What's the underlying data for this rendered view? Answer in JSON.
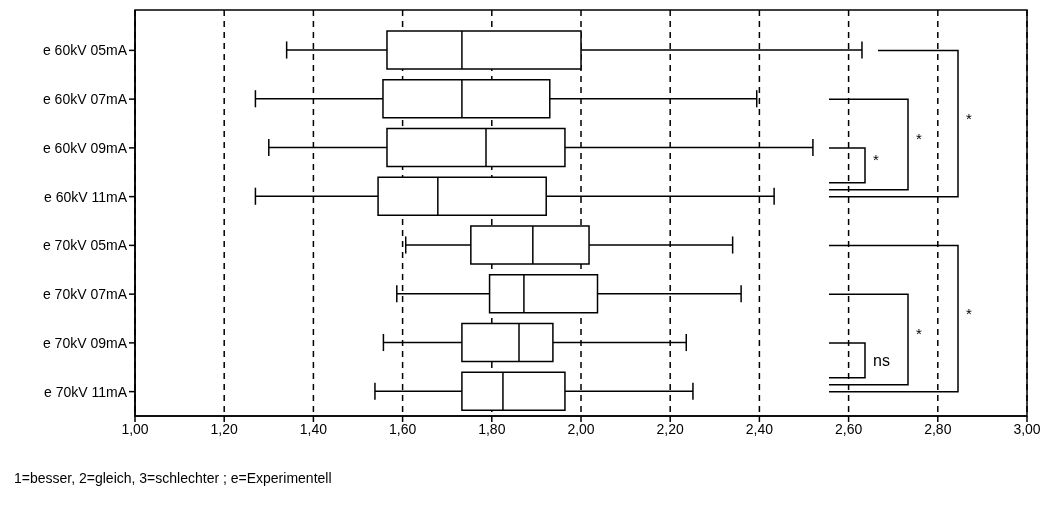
{
  "chart_data": {
    "type": "box",
    "orientation": "horizontal",
    "categories": [
      "e 60kV 05mA",
      "e 60kV 07mA",
      "e 60kV 09mA",
      "e 60kV 11mA",
      "e 70kV 05mA",
      "e 70kV 07mA",
      "e 70kV 09mA",
      "e 70kV 11mA"
    ],
    "boxes": [
      {
        "low": 1.34,
        "q1": 1.565,
        "median": 1.733,
        "q3": 2.0,
        "high": 2.63
      },
      {
        "low": 1.27,
        "q1": 1.556,
        "median": 1.733,
        "q3": 1.93,
        "high": 2.394
      },
      {
        "low": 1.3,
        "q1": 1.565,
        "median": 1.787,
        "q3": 1.964,
        "high": 2.52
      },
      {
        "low": 1.27,
        "q1": 1.545,
        "median": 1.679,
        "q3": 1.922,
        "high": 2.433
      },
      {
        "low": 1.607,
        "q1": 1.753,
        "median": 1.892,
        "q3": 2.018,
        "high": 2.34
      },
      {
        "low": 1.587,
        "q1": 1.795,
        "median": 1.872,
        "q3": 2.037,
        "high": 2.359
      },
      {
        "low": 1.557,
        "q1": 1.733,
        "median": 1.861,
        "q3": 1.937,
        "high": 2.236
      },
      {
        "low": 1.538,
        "q1": 1.733,
        "median": 1.825,
        "q3": 1.964,
        "high": 2.251
      }
    ],
    "xlim": [
      1,
      3
    ],
    "xticks": [
      {
        "value": 1,
        "label": "1,00"
      },
      {
        "value": 1.2,
        "label": "1,20"
      },
      {
        "value": 1.4,
        "label": "1,40"
      },
      {
        "value": 1.6,
        "label": "1,60"
      },
      {
        "value": 1.8,
        "label": "1,80"
      },
      {
        "value": 2,
        "label": "2,00"
      },
      {
        "value": 2.2,
        "label": "2,20"
      },
      {
        "value": 2.4,
        "label": "2,40"
      },
      {
        "value": 2.6,
        "label": "2,60"
      },
      {
        "value": 2.8,
        "label": "2,80"
      },
      {
        "value": 3,
        "label": "3,00"
      }
    ],
    "grid": "x",
    "annotations": [
      "*",
      "*",
      "*",
      "*",
      "*",
      "ns",
      "1=besser, 2=gleich, 3=schlechter ; e=Experimentell"
    ]
  }
}
